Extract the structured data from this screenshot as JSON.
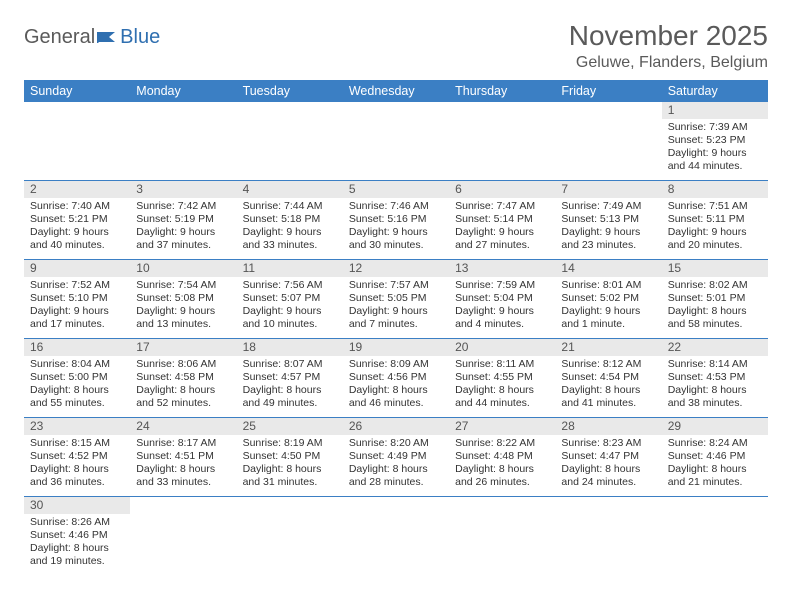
{
  "logo": {
    "general": "General",
    "blue": "Blue"
  },
  "title": "November 2025",
  "location": "Geluwe, Flanders, Belgium",
  "colors": {
    "header_bg": "#3b7fc4",
    "header_text": "#ffffff",
    "line": "#3b7fc4",
    "daynum_bg": "#e9e9e9",
    "text": "#333333"
  },
  "weekdays": [
    "Sunday",
    "Monday",
    "Tuesday",
    "Wednesday",
    "Thursday",
    "Friday",
    "Saturday"
  ],
  "weeks": [
    [
      null,
      null,
      null,
      null,
      null,
      null,
      {
        "n": "1",
        "sunrise": "7:39 AM",
        "sunset": "5:23 PM",
        "day": "9 hours and 44 minutes."
      }
    ],
    [
      {
        "n": "2",
        "sunrise": "7:40 AM",
        "sunset": "5:21 PM",
        "day": "9 hours and 40 minutes."
      },
      {
        "n": "3",
        "sunrise": "7:42 AM",
        "sunset": "5:19 PM",
        "day": "9 hours and 37 minutes."
      },
      {
        "n": "4",
        "sunrise": "7:44 AM",
        "sunset": "5:18 PM",
        "day": "9 hours and 33 minutes."
      },
      {
        "n": "5",
        "sunrise": "7:46 AM",
        "sunset": "5:16 PM",
        "day": "9 hours and 30 minutes."
      },
      {
        "n": "6",
        "sunrise": "7:47 AM",
        "sunset": "5:14 PM",
        "day": "9 hours and 27 minutes."
      },
      {
        "n": "7",
        "sunrise": "7:49 AM",
        "sunset": "5:13 PM",
        "day": "9 hours and 23 minutes."
      },
      {
        "n": "8",
        "sunrise": "7:51 AM",
        "sunset": "5:11 PM",
        "day": "9 hours and 20 minutes."
      }
    ],
    [
      {
        "n": "9",
        "sunrise": "7:52 AM",
        "sunset": "5:10 PM",
        "day": "9 hours and 17 minutes."
      },
      {
        "n": "10",
        "sunrise": "7:54 AM",
        "sunset": "5:08 PM",
        "day": "9 hours and 13 minutes."
      },
      {
        "n": "11",
        "sunrise": "7:56 AM",
        "sunset": "5:07 PM",
        "day": "9 hours and 10 minutes."
      },
      {
        "n": "12",
        "sunrise": "7:57 AM",
        "sunset": "5:05 PM",
        "day": "9 hours and 7 minutes."
      },
      {
        "n": "13",
        "sunrise": "7:59 AM",
        "sunset": "5:04 PM",
        "day": "9 hours and 4 minutes."
      },
      {
        "n": "14",
        "sunrise": "8:01 AM",
        "sunset": "5:02 PM",
        "day": "9 hours and 1 minute."
      },
      {
        "n": "15",
        "sunrise": "8:02 AM",
        "sunset": "5:01 PM",
        "day": "8 hours and 58 minutes."
      }
    ],
    [
      {
        "n": "16",
        "sunrise": "8:04 AM",
        "sunset": "5:00 PM",
        "day": "8 hours and 55 minutes."
      },
      {
        "n": "17",
        "sunrise": "8:06 AM",
        "sunset": "4:58 PM",
        "day": "8 hours and 52 minutes."
      },
      {
        "n": "18",
        "sunrise": "8:07 AM",
        "sunset": "4:57 PM",
        "day": "8 hours and 49 minutes."
      },
      {
        "n": "19",
        "sunrise": "8:09 AM",
        "sunset": "4:56 PM",
        "day": "8 hours and 46 minutes."
      },
      {
        "n": "20",
        "sunrise": "8:11 AM",
        "sunset": "4:55 PM",
        "day": "8 hours and 44 minutes."
      },
      {
        "n": "21",
        "sunrise": "8:12 AM",
        "sunset": "4:54 PM",
        "day": "8 hours and 41 minutes."
      },
      {
        "n": "22",
        "sunrise": "8:14 AM",
        "sunset": "4:53 PM",
        "day": "8 hours and 38 minutes."
      }
    ],
    [
      {
        "n": "23",
        "sunrise": "8:15 AM",
        "sunset": "4:52 PM",
        "day": "8 hours and 36 minutes."
      },
      {
        "n": "24",
        "sunrise": "8:17 AM",
        "sunset": "4:51 PM",
        "day": "8 hours and 33 minutes."
      },
      {
        "n": "25",
        "sunrise": "8:19 AM",
        "sunset": "4:50 PM",
        "day": "8 hours and 31 minutes."
      },
      {
        "n": "26",
        "sunrise": "8:20 AM",
        "sunset": "4:49 PM",
        "day": "8 hours and 28 minutes."
      },
      {
        "n": "27",
        "sunrise": "8:22 AM",
        "sunset": "4:48 PM",
        "day": "8 hours and 26 minutes."
      },
      {
        "n": "28",
        "sunrise": "8:23 AM",
        "sunset": "4:47 PM",
        "day": "8 hours and 24 minutes."
      },
      {
        "n": "29",
        "sunrise": "8:24 AM",
        "sunset": "4:46 PM",
        "day": "8 hours and 21 minutes."
      }
    ],
    [
      {
        "n": "30",
        "sunrise": "8:26 AM",
        "sunset": "4:46 PM",
        "day": "8 hours and 19 minutes."
      },
      null,
      null,
      null,
      null,
      null,
      null
    ]
  ],
  "labels": {
    "sunrise": "Sunrise: ",
    "sunset": "Sunset: ",
    "daylight": "Daylight: "
  }
}
